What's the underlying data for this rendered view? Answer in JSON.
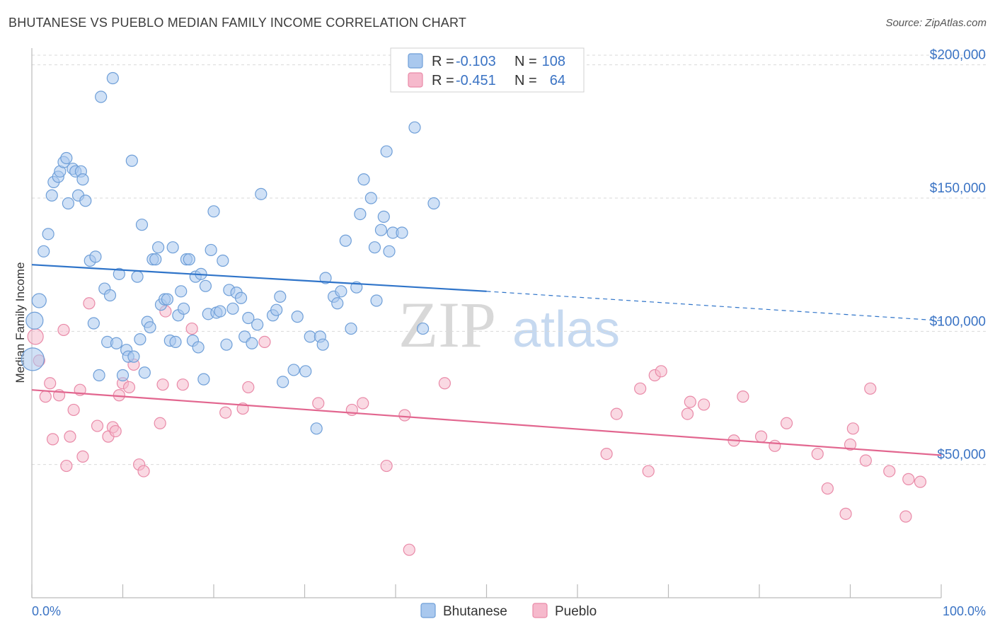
{
  "title": "BHUTANESE VS PUEBLO MEDIAN FAMILY INCOME CORRELATION CHART",
  "source": "Source: ZipAtlas.com",
  "watermark": {
    "zip": "ZIP",
    "atlas": "atlas"
  },
  "legend": {
    "r_label": "R =",
    "n_label": "N =",
    "rows": [
      {
        "r": "-0.103",
        "n": "108"
      },
      {
        "r": "-0.451",
        "n": "64"
      }
    ]
  },
  "colors": {
    "bhutanese_fill": "#a9c8ee",
    "bhutanese_stroke": "#6f9fd8",
    "bhutanese_line": "#2f74c9",
    "pueblo_fill": "#f6b9cc",
    "pueblo_stroke": "#e98aa8",
    "pueblo_line": "#e2668f",
    "tick_text": "#3a73c4",
    "grid": "#d9d9d9"
  },
  "chart_data": {
    "type": "scatter",
    "title": "BHUTANESE VS PUEBLO MEDIAN FAMILY INCOME CORRELATION CHART",
    "xlabel": "",
    "ylabel": "Median Family Income",
    "xlim": [
      0,
      100
    ],
    "ylim": [
      0,
      210000
    ],
    "x_tick_labels": [
      "0.0%",
      "100.0%"
    ],
    "y_ticks": [
      50000,
      100000,
      150000,
      200000
    ],
    "y_tick_labels": [
      "$50,000",
      "$100,000",
      "$150,000",
      "$200,000"
    ],
    "grid": true,
    "legend_position": "top-center",
    "series": [
      {
        "name": "Bhutanese",
        "r": -0.103,
        "n": 108,
        "trend": {
          "x0": 0,
          "y0": 125000,
          "x1": 50,
          "y1": 115000,
          "dash_x1": 100,
          "dash_y1": 104000
        },
        "points": [
          [
            0.1,
            89500,
            16
          ],
          [
            0.3,
            104000,
            12
          ],
          [
            0.8,
            111500,
            10
          ],
          [
            1.3,
            130000,
            8
          ],
          [
            1.8,
            136500,
            8
          ],
          [
            2.2,
            151000,
            8
          ],
          [
            2.4,
            156000,
            8
          ],
          [
            2.9,
            158000,
            8
          ],
          [
            3.1,
            160000,
            8
          ],
          [
            3.5,
            163500,
            8
          ],
          [
            3.8,
            165000,
            8
          ],
          [
            4.0,
            148000,
            8
          ],
          [
            4.5,
            161000,
            8
          ],
          [
            4.8,
            160000,
            8
          ],
          [
            5.1,
            151000,
            8
          ],
          [
            5.4,
            160000,
            8
          ],
          [
            5.6,
            157000,
            8
          ],
          [
            5.9,
            149000,
            8
          ],
          [
            6.4,
            126500,
            8
          ],
          [
            6.8,
            103000,
            8
          ],
          [
            7.0,
            128000,
            8
          ],
          [
            7.4,
            83500,
            8
          ],
          [
            7.6,
            188000,
            8
          ],
          [
            8.0,
            116000,
            8
          ],
          [
            8.3,
            96000,
            8
          ],
          [
            8.6,
            113500,
            8
          ],
          [
            8.9,
            195000,
            8
          ],
          [
            9.3,
            95500,
            8
          ],
          [
            9.6,
            121500,
            8
          ],
          [
            10.0,
            83500,
            8
          ],
          [
            10.4,
            93000,
            8
          ],
          [
            10.6,
            90500,
            8
          ],
          [
            11.0,
            164000,
            8
          ],
          [
            11.2,
            90500,
            8
          ],
          [
            11.6,
            120500,
            8
          ],
          [
            11.9,
            97000,
            8
          ],
          [
            12.1,
            140000,
            8
          ],
          [
            12.4,
            84500,
            8
          ],
          [
            12.7,
            103500,
            8
          ],
          [
            13.0,
            101500,
            8
          ],
          [
            13.3,
            127000,
            8
          ],
          [
            13.6,
            127000,
            8
          ],
          [
            13.9,
            131500,
            8
          ],
          [
            14.2,
            110000,
            8
          ],
          [
            14.6,
            112000,
            8
          ],
          [
            14.9,
            112000,
            8
          ],
          [
            15.2,
            96500,
            8
          ],
          [
            15.5,
            131500,
            8
          ],
          [
            15.8,
            96000,
            8
          ],
          [
            16.1,
            106000,
            8
          ],
          [
            16.4,
            115000,
            8
          ],
          [
            16.7,
            108500,
            8
          ],
          [
            17.0,
            127000,
            8
          ],
          [
            17.3,
            127000,
            8
          ],
          [
            17.7,
            96500,
            8
          ],
          [
            18.0,
            120500,
            8
          ],
          [
            18.3,
            94000,
            8
          ],
          [
            18.6,
            121500,
            8
          ],
          [
            18.9,
            82000,
            8
          ],
          [
            19.1,
            117000,
            8
          ],
          [
            19.4,
            106500,
            8
          ],
          [
            19.7,
            130500,
            8
          ],
          [
            20.0,
            145000,
            8
          ],
          [
            20.3,
            107000,
            8
          ],
          [
            20.7,
            107500,
            8
          ],
          [
            21.0,
            126500,
            8
          ],
          [
            21.4,
            95000,
            8
          ],
          [
            21.7,
            115500,
            8
          ],
          [
            22.1,
            108500,
            8
          ],
          [
            22.5,
            114500,
            8
          ],
          [
            23.0,
            112500,
            8
          ],
          [
            23.4,
            98000,
            8
          ],
          [
            23.8,
            105000,
            8
          ],
          [
            24.2,
            95500,
            8
          ],
          [
            24.8,
            102500,
            8
          ],
          [
            25.2,
            151500,
            8
          ],
          [
            26.5,
            106000,
            8
          ],
          [
            26.9,
            108000,
            8
          ],
          [
            27.3,
            113000,
            8
          ],
          [
            27.6,
            81000,
            8
          ],
          [
            28.8,
            85500,
            8
          ],
          [
            29.2,
            105500,
            8
          ],
          [
            30.1,
            85000,
            8
          ],
          [
            30.6,
            98000,
            8
          ],
          [
            31.3,
            63500,
            8
          ],
          [
            31.7,
            98000,
            8
          ],
          [
            32.0,
            95000,
            8
          ],
          [
            32.3,
            120000,
            8
          ],
          [
            33.2,
            113000,
            8
          ],
          [
            33.6,
            110500,
            8
          ],
          [
            34.0,
            115000,
            8
          ],
          [
            34.5,
            134000,
            8
          ],
          [
            35.1,
            101000,
            8
          ],
          [
            35.7,
            116500,
            8
          ],
          [
            36.1,
            144000,
            8
          ],
          [
            36.5,
            157000,
            8
          ],
          [
            37.3,
            150000,
            8
          ],
          [
            37.7,
            131500,
            8
          ],
          [
            37.9,
            111500,
            8
          ],
          [
            38.4,
            138000,
            8
          ],
          [
            38.7,
            143000,
            8
          ],
          [
            39.0,
            167500,
            8
          ],
          [
            39.3,
            130000,
            8
          ],
          [
            39.7,
            137000,
            8
          ],
          [
            40.7,
            137000,
            8
          ],
          [
            42.1,
            176500,
            8
          ],
          [
            43.0,
            101000,
            8
          ],
          [
            44.2,
            148000,
            8
          ]
        ]
      },
      {
        "name": "Pueblo",
        "r": -0.451,
        "n": 64,
        "trend": {
          "x0": 0,
          "y0": 78000,
          "x1": 100,
          "y1": 53500
        },
        "points": [
          [
            0.4,
            98000,
            11
          ],
          [
            0.8,
            89000,
            8
          ],
          [
            1.5,
            75500,
            8
          ],
          [
            2.0,
            80500,
            8
          ],
          [
            2.3,
            59500,
            8
          ],
          [
            3.0,
            76000,
            8
          ],
          [
            3.5,
            100500,
            8
          ],
          [
            3.8,
            49500,
            8
          ],
          [
            4.2,
            60500,
            8
          ],
          [
            4.6,
            70500,
            8
          ],
          [
            5.3,
            78000,
            8
          ],
          [
            5.6,
            53000,
            8
          ],
          [
            6.3,
            110500,
            8
          ],
          [
            7.2,
            64500,
            8
          ],
          [
            8.4,
            60500,
            8
          ],
          [
            8.9,
            64000,
            8
          ],
          [
            9.2,
            62500,
            8
          ],
          [
            9.6,
            76000,
            8
          ],
          [
            10.0,
            80500,
            8
          ],
          [
            10.7,
            79000,
            8
          ],
          [
            11.2,
            87500,
            8
          ],
          [
            11.8,
            50000,
            8
          ],
          [
            12.3,
            47500,
            8
          ],
          [
            14.1,
            65500,
            8
          ],
          [
            14.4,
            80000,
            8
          ],
          [
            14.7,
            107500,
            8
          ],
          [
            16.6,
            80000,
            8
          ],
          [
            17.6,
            101000,
            8
          ],
          [
            21.3,
            69500,
            8
          ],
          [
            23.2,
            71000,
            8
          ],
          [
            23.8,
            79000,
            8
          ],
          [
            25.6,
            96000,
            8
          ],
          [
            31.5,
            73000,
            8
          ],
          [
            35.2,
            70500,
            8
          ],
          [
            36.4,
            73000,
            8
          ],
          [
            39.0,
            49500,
            8
          ],
          [
            41.0,
            68500,
            8
          ],
          [
            41.5,
            18000,
            8
          ],
          [
            45.4,
            80500,
            8
          ],
          [
            63.2,
            54000,
            8
          ],
          [
            64.3,
            69000,
            8
          ],
          [
            66.9,
            78500,
            8
          ],
          [
            67.8,
            47500,
            8
          ],
          [
            68.5,
            83500,
            8
          ],
          [
            69.2,
            85000,
            8
          ],
          [
            72.1,
            69000,
            8
          ],
          [
            72.4,
            73500,
            8
          ],
          [
            73.9,
            72500,
            8
          ],
          [
            77.2,
            59000,
            8
          ],
          [
            78.2,
            75500,
            8
          ],
          [
            80.2,
            60500,
            8
          ],
          [
            81.7,
            57000,
            8
          ],
          [
            83.0,
            65500,
            8
          ],
          [
            86.4,
            54000,
            8
          ],
          [
            87.5,
            41000,
            8
          ],
          [
            89.5,
            31500,
            8
          ],
          [
            90.0,
            57500,
            8
          ],
          [
            90.3,
            63500,
            8
          ],
          [
            91.7,
            51500,
            8
          ],
          [
            92.2,
            78500,
            8
          ],
          [
            94.3,
            47500,
            8
          ],
          [
            96.1,
            30500,
            8
          ],
          [
            96.4,
            44500,
            8
          ],
          [
            97.7,
            43500,
            8
          ]
        ]
      }
    ]
  }
}
